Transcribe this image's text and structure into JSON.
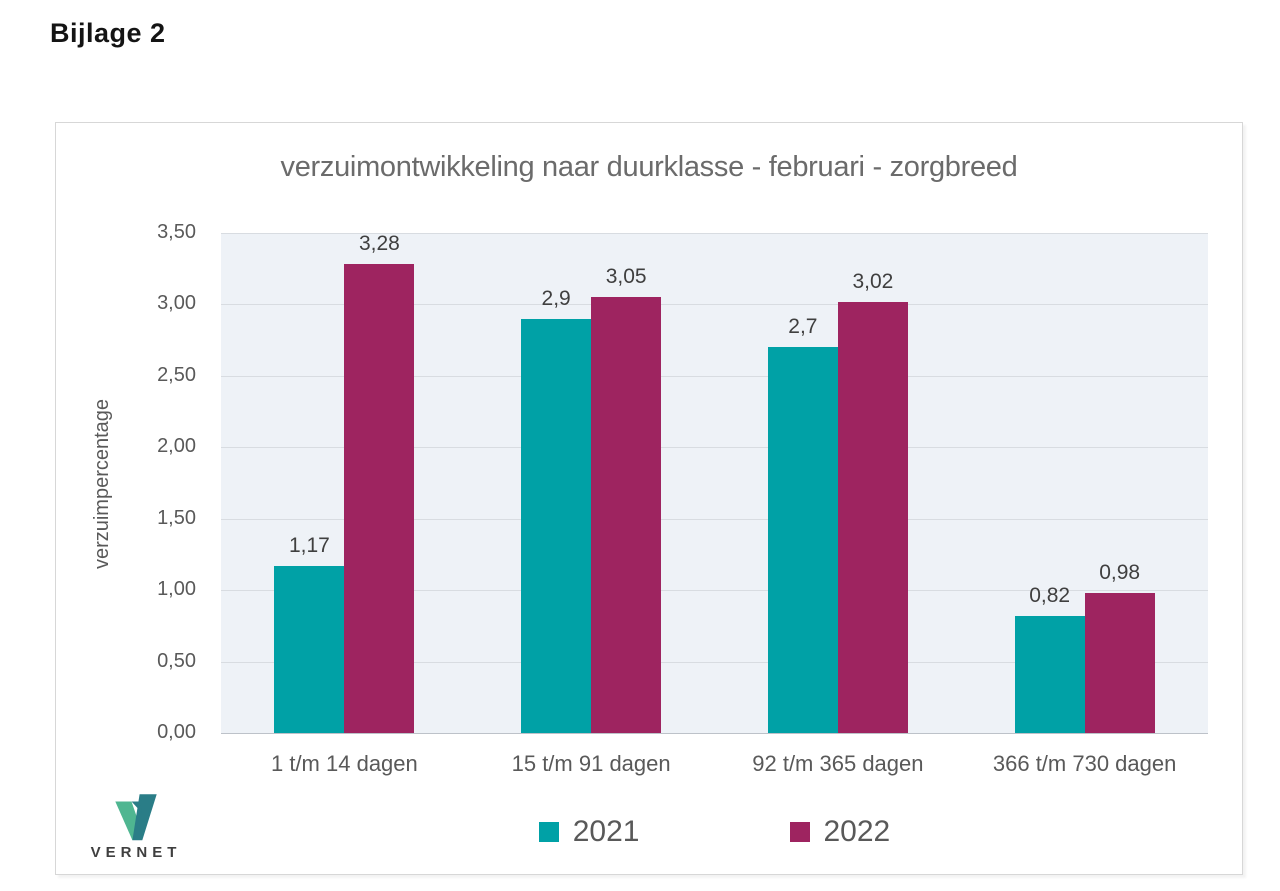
{
  "page": {
    "heading": "Bijlage 2"
  },
  "logo": {
    "text": "VERNET",
    "mark_colors": {
      "left_arm": "#4fb691",
      "right_arm": "#2a7d87"
    }
  },
  "chart_data": {
    "type": "bar",
    "title": "verzuimontwikkeling naar duurklasse - februari - zorgbreed",
    "ylabel": "verzuimpercentage",
    "xlabel": "",
    "categories": [
      "1 t/m 14 dagen",
      "15 t/m 91 dagen",
      "92 t/m 365 dagen",
      "366 t/m 730 dagen"
    ],
    "series": [
      {
        "name": "2021",
        "color": "#00a1a6",
        "values": [
          1.17,
          2.9,
          2.7,
          0.82
        ],
        "value_labels": [
          "1,17",
          "2,9",
          "2,7",
          "0,82"
        ]
      },
      {
        "name": "2022",
        "color": "#9e2460",
        "values": [
          3.28,
          3.05,
          3.02,
          0.98
        ],
        "value_labels": [
          "3,28",
          "3,05",
          "3,02",
          "0,98"
        ]
      }
    ],
    "ylim": [
      0,
      3.5
    ],
    "ytick_values": [
      0,
      0.5,
      1,
      1.5,
      2,
      2.5,
      3,
      3.5
    ],
    "ytick_labels": [
      "0,00",
      "0,50",
      "1,00",
      "1,50",
      "2,00",
      "2,50",
      "3,00",
      "3,50"
    ],
    "grid": true,
    "legend_position": "bottom",
    "plot_background": "#eef2f7",
    "gridline_color": "#d8dce1"
  }
}
